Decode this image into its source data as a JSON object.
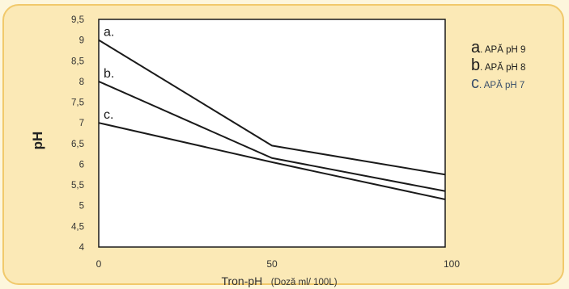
{
  "chart_data": {
    "type": "line",
    "title": "",
    "xlabel": "Tron-pH",
    "xlabel_suffix": "(Doză  ml/ 100L)",
    "ylabel": "pH",
    "x_ticks": [
      "0",
      "50",
      "100"
    ],
    "y_ticks": [
      "4",
      "4,5",
      "5",
      "5,5",
      "6",
      "6,5",
      "7",
      "7,5",
      "8",
      "8,5",
      "9",
      "9,5"
    ],
    "xlim": [
      0,
      100
    ],
    "ylim": [
      4,
      9.5
    ],
    "grid": false,
    "legend_position": "right",
    "x": [
      0,
      50,
      100
    ],
    "series": [
      {
        "name": "APĂ pH 9",
        "label": "a.",
        "letter": "a",
        "values": [
          9.0,
          6.45,
          5.75
        ]
      },
      {
        "name": "APĂ pH 8",
        "label": "b.",
        "letter": "b",
        "values": [
          8.0,
          6.15,
          5.35
        ]
      },
      {
        "name": "APĂ pH 7",
        "label": "c.",
        "letter": "c",
        "values": [
          7.0,
          6.05,
          5.15
        ]
      }
    ],
    "legend_suffix": ". ",
    "colors": {
      "line": "#1a1a1a",
      "tick_text": "#333333",
      "legend_text": "#1a1a1a",
      "legend_text_c": "#3a4f6a"
    }
  }
}
